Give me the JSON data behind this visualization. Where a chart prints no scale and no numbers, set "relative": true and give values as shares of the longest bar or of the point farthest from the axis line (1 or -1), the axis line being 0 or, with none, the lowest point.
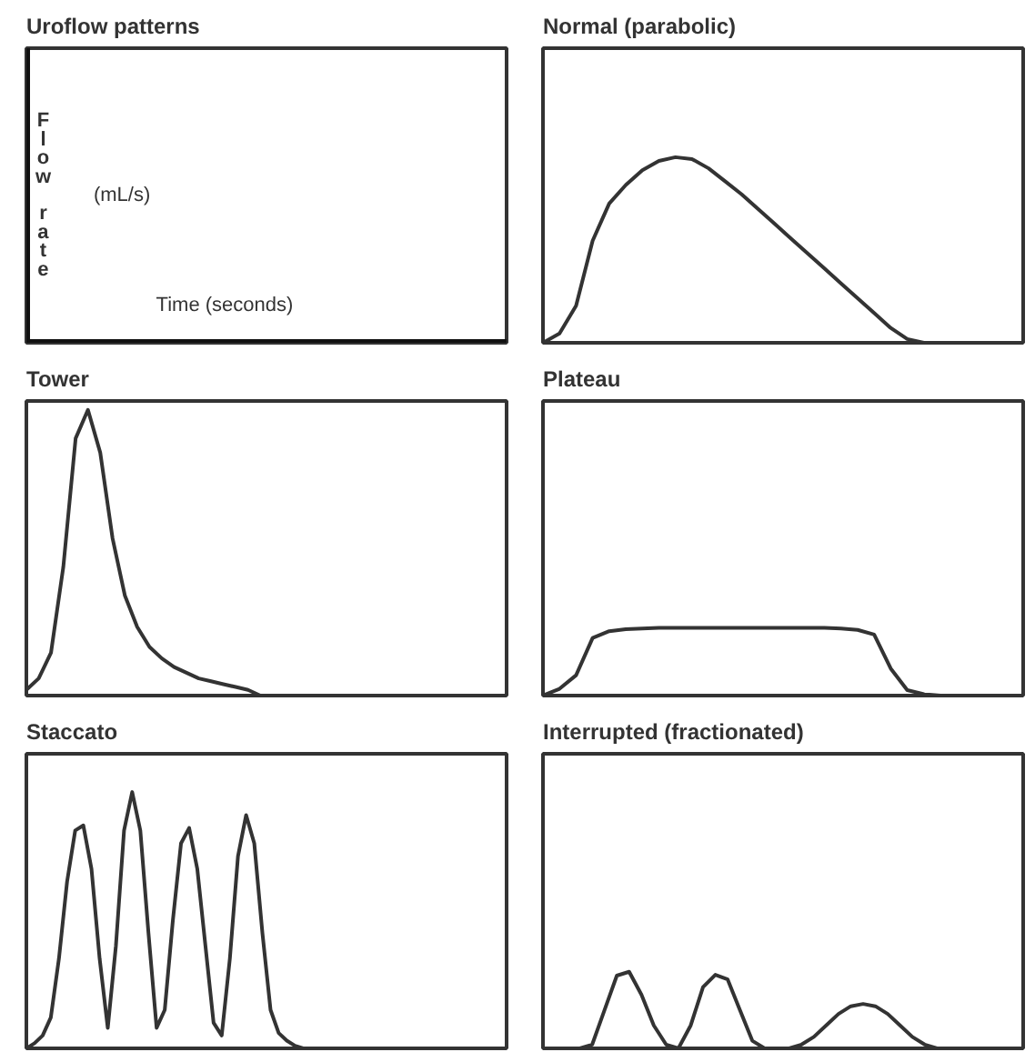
{
  "chart_data": [
    {
      "type": "other",
      "title": "Uroflow patterns",
      "ylabel": "Flow rate",
      "xlabel": "Time (seconds)",
      "annotations": [
        "(mL/s)"
      ]
    },
    {
      "type": "line",
      "title": "Normal (parabolic)",
      "relative": true,
      "color": "#333333",
      "categories": [
        null,
        null,
        null,
        null,
        null,
        null,
        null,
        null,
        null,
        null,
        null,
        null,
        null,
        null,
        null,
        null,
        null,
        null,
        null,
        null,
        null,
        null,
        null,
        null,
        null,
        null,
        null,
        null,
        null,
        null
      ],
      "values": [
        0,
        0.05,
        0.2,
        0.55,
        0.75,
        0.85,
        0.93,
        0.98,
        1.0,
        0.99,
        0.94,
        0.87,
        0.8,
        0.72,
        0.64,
        0.56,
        0.48,
        0.4,
        0.32,
        0.24,
        0.16,
        0.08,
        0.02,
        0,
        0,
        0,
        0,
        0,
        0,
        0
      ]
    },
    {
      "type": "line",
      "title": "Tower",
      "relative": true,
      "color": "#333333",
      "categories": [
        null,
        null,
        null,
        null,
        null,
        null,
        null,
        null,
        null,
        null,
        null,
        null,
        null,
        null,
        null,
        null,
        null,
        null,
        null,
        null,
        null,
        null,
        null,
        null,
        null,
        null,
        null,
        null,
        null,
        null,
        null,
        null,
        null,
        null,
        null,
        null,
        null,
        null,
        null,
        null
      ],
      "values": [
        0.02,
        0.06,
        0.15,
        0.45,
        0.9,
        1.0,
        0.85,
        0.55,
        0.35,
        0.24,
        0.17,
        0.13,
        0.1,
        0.08,
        0.06,
        0.05,
        0.04,
        0.03,
        0.02,
        0,
        0,
        0,
        0,
        0,
        0,
        0,
        0,
        0,
        0,
        0,
        0,
        0,
        0,
        0,
        0,
        0,
        0,
        0,
        0,
        0
      ]
    },
    {
      "type": "line",
      "title": "Plateau",
      "relative": true,
      "color": "#333333",
      "categories": [
        null,
        null,
        null,
        null,
        null,
        null,
        null,
        null,
        null,
        null,
        null,
        null,
        null,
        null,
        null,
        null,
        null,
        null,
        null,
        null,
        null,
        null,
        null,
        null,
        null,
        null,
        null,
        null,
        null,
        null
      ],
      "values": [
        0,
        0.1,
        0.3,
        0.85,
        0.95,
        0.98,
        0.99,
        1.0,
        1.0,
        1.0,
        1.0,
        1.0,
        1.0,
        1.0,
        1.0,
        1.0,
        1.0,
        1.0,
        0.99,
        0.97,
        0.9,
        0.4,
        0.08,
        0.02,
        0,
        0,
        0,
        0,
        0,
        0
      ]
    },
    {
      "type": "line",
      "title": "Staccato",
      "relative": true,
      "color": "#333333",
      "categories": [
        null,
        null,
        null,
        null,
        null,
        null,
        null,
        null,
        null,
        null,
        null,
        null,
        null,
        null,
        null,
        null,
        null,
        null,
        null,
        null,
        null,
        null,
        null,
        null,
        null,
        null,
        null,
        null,
        null,
        null,
        null,
        null,
        null,
        null,
        null,
        null,
        null,
        null,
        null,
        null,
        null,
        null,
        null,
        null,
        null,
        null,
        null,
        null,
        null,
        null,
        null,
        null,
        null,
        null,
        null,
        null,
        null,
        null,
        null,
        null
      ],
      "values": [
        0,
        0.02,
        0.05,
        0.12,
        0.35,
        0.65,
        0.85,
        0.87,
        0.7,
        0.35,
        0.08,
        0.4,
        0.85,
        1.0,
        0.85,
        0.45,
        0.08,
        0.15,
        0.5,
        0.8,
        0.86,
        0.7,
        0.4,
        0.1,
        0.05,
        0.35,
        0.75,
        0.91,
        0.8,
        0.45,
        0.15,
        0.06,
        0.03,
        0.01,
        0,
        0,
        0,
        0,
        0,
        0,
        0,
        0,
        0,
        0,
        0,
        0,
        0,
        0,
        0,
        0,
        0,
        0,
        0,
        0,
        0,
        0,
        0,
        0,
        0,
        0
      ]
    },
    {
      "type": "line",
      "title": "Interrupted (fractionated)",
      "relative": true,
      "color": "#333333",
      "categories": [
        null,
        null,
        null,
        null,
        null,
        null,
        null,
        null,
        null,
        null,
        null,
        null,
        null,
        null,
        null,
        null,
        null,
        null,
        null,
        null,
        null,
        null,
        null,
        null,
        null,
        null,
        null,
        null,
        null,
        null,
        null,
        null,
        null,
        null,
        null,
        null,
        null,
        null,
        null,
        null
      ],
      "values": [
        0,
        0,
        0,
        0,
        0.05,
        0.5,
        0.95,
        1.0,
        0.7,
        0.3,
        0.05,
        0,
        0.3,
        0.8,
        0.96,
        0.9,
        0.5,
        0.1,
        0,
        0,
        0,
        0.05,
        0.15,
        0.3,
        0.45,
        0.55,
        0.58,
        0.55,
        0.45,
        0.3,
        0.15,
        0.05,
        0,
        0,
        0,
        0,
        0,
        0,
        0,
        0
      ]
    }
  ]
}
